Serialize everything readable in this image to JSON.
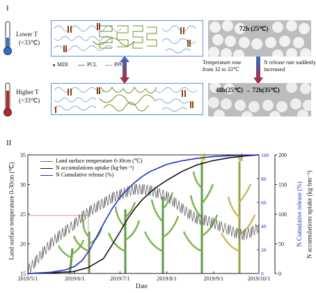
{
  "panel1": {
    "label": "I",
    "lower_t": {
      "title": "Lower  T",
      "range": "(<33℃)"
    },
    "higher_t": {
      "title": "Higher  T",
      "range": "(>33℃)"
    },
    "legend": [
      "MDI",
      "PCL",
      "PPG"
    ],
    "note_temp": "Temperature rose from 32 to 33℃",
    "note_release": "N release rate suddenly increased",
    "photo_top_caption": "72h (25℃)",
    "photo_bottom_caption": "48h(25℃) → 72h(35℃)",
    "colors": {
      "mdi": "#8b4513",
      "pcl": "#6b8e23",
      "ppg": "#7ba7e0",
      "cold": "#2a73c8",
      "hot": "#c0202a"
    }
  },
  "panel2": {
    "label": "II",
    "legend": [
      "Land surface temperature 0-30cm (℃)",
      "N accumulations uptake (kg·hm⁻²)",
      "N Cumulative release (%)"
    ],
    "ylabel_left": "Land surface temperature 0-30cm (℃)",
    "ylabel_right_1": "N Cumulative release (%)",
    "ylabel_right_2": "N accumulations uptake (kg·hm⁻²)",
    "xlabel": "Date"
  },
  "chart_data": {
    "type": "line",
    "x_ticks": [
      "2019/5/1",
      "2019/6/1",
      "2019/7/1",
      "2019/8/1",
      "2019/9/1",
      "2019/10/1"
    ],
    "ylim_left": [
      15,
      35
    ],
    "yticks_left": [
      15,
      20,
      25,
      30,
      35
    ],
    "ylim_right_release": [
      0,
      100
    ],
    "yticks_right_release": [
      0,
      20,
      40,
      60,
      80,
      100
    ],
    "ylim_right_uptake": [
      0,
      200
    ],
    "yticks_right_uptake": [
      0,
      50,
      100,
      150,
      200
    ],
    "reference_temperature": 24.8,
    "series": [
      {
        "name": "Land surface temperature 0-30cm (℃)",
        "color": "#666666",
        "axis": "left",
        "x": [
          0,
          5,
          10,
          15,
          20,
          25,
          31,
          36,
          41,
          46,
          51,
          56,
          61,
          66,
          71,
          76,
          81,
          86,
          92,
          97,
          102,
          107,
          112,
          117,
          122,
          127,
          133,
          138,
          143,
          148,
          153
        ],
        "y": [
          15.5,
          17,
          18.5,
          20,
          21.2,
          22.2,
          23.3,
          24.6,
          25.5,
          26.3,
          27,
          27.8,
          28.3,
          28.8,
          29.2,
          29.2,
          29,
          28.6,
          28,
          27,
          26,
          25,
          24.2,
          24,
          23.6,
          23,
          22.4,
          21.8,
          21.5,
          22,
          22.8
        ]
      },
      {
        "name": "N accumulations uptake (kg·hm⁻²)",
        "color": "#111111",
        "axis": "uptake",
        "x": [
          0,
          15,
          30,
          40,
          50,
          55,
          61,
          66,
          71,
          76,
          81,
          86,
          92,
          102,
          112,
          122,
          133,
          143,
          153
        ],
        "y": [
          0,
          1,
          3,
          10,
          25,
          45,
          70,
          92,
          110,
          125,
          137,
          147,
          157,
          172,
          183,
          190,
          195,
          198,
          200
        ]
      },
      {
        "name": "N Cumulative release (%)",
        "color": "#1c2ec8",
        "axis": "release",
        "x": [
          0,
          15,
          25,
          31,
          36,
          41,
          46,
          51,
          56,
          61,
          66,
          71,
          76,
          81,
          92,
          102,
          112,
          122,
          133,
          143,
          153
        ],
        "y": [
          0,
          1,
          3,
          6,
          11,
          20,
          32,
          44,
          55,
          64,
          71,
          77,
          82,
          86,
          92,
          95,
          97,
          98.5,
          99.3,
          99.7,
          100
        ]
      }
    ]
  }
}
